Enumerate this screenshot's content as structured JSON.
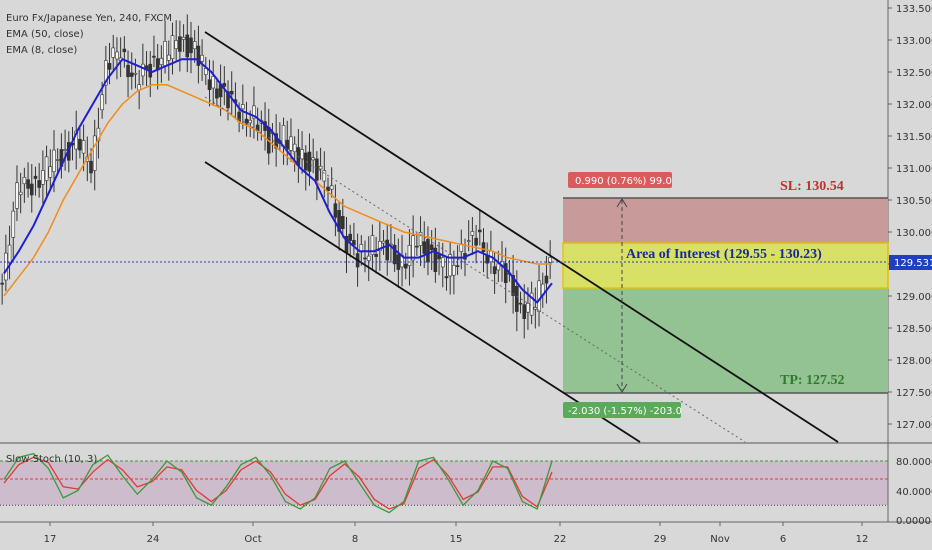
{
  "header": {
    "symbol_line": "Euro Fx/Japanese Yen, 240, FXCM",
    "ema_slow": "EMA (50, close)",
    "ema_fast": "EMA (8, close)"
  },
  "price_axis": {
    "ticks": [
      "133.500",
      "133.000",
      "132.500",
      "132.000",
      "131.500",
      "131.000",
      "130.500",
      "130.000",
      "129.500",
      "129.000",
      "128.500",
      "128.000",
      "127.500",
      "127.000"
    ],
    "current_price": "129.531"
  },
  "time_axis": {
    "ticks": [
      "17",
      "24",
      "Oct",
      "8",
      "15",
      "22",
      "29",
      "Nov",
      "6",
      "12"
    ]
  },
  "trade": {
    "stop_label": "SL: 130.54",
    "stop_stats": "0.990 (0.76%) 99.0",
    "target_label": "TP: 127.52",
    "target_stats": "-2.030 (-1.57%) -203.0",
    "aoi_label": "Area of Interest (129.55 - 130.23)"
  },
  "oscillator": {
    "name": "Slow Stoch (10, 3)",
    "ticks": [
      "80.0000",
      "40.0000",
      "0.0000"
    ]
  },
  "colors": {
    "background": "#d8d8d8",
    "candle": "#333333",
    "ema_fast": "#1f1fd1",
    "ema_slow": "#f28c1c",
    "stop_zone": "#c89a9a",
    "target_zone": "#93c393",
    "aoi_zone": "#f0e45a",
    "stop_text": "#c0302f",
    "target_text": "#2f7a2f",
    "aoi_text": "#1a2a9a",
    "price_tag": "#1f3fbf",
    "stoch_k": "#3a9a3a",
    "stoch_d": "#e03a3a"
  },
  "chart_data": {
    "type": "candlestick",
    "title": "Euro Fx/Japanese Yen, 240, FXCM",
    "ylim": [
      126.8,
      133.6
    ],
    "x_ticks": [
      "17",
      "24",
      "Oct",
      "8",
      "15",
      "22",
      "29",
      "Nov",
      "6",
      "12"
    ],
    "current_price": 129.531,
    "series_close": [
      {
        "day": "Sep 15",
        "close": 129.35
      },
      {
        "day": "Sep 16",
        "close": 130.6
      },
      {
        "day": "Sep 17",
        "close": 130.75
      },
      {
        "day": "Sep 18",
        "close": 131.0
      },
      {
        "day": "Sep 19",
        "close": 131.2
      },
      {
        "day": "Sep 20",
        "close": 131.4
      },
      {
        "day": "Sep 21",
        "close": 131.1
      },
      {
        "day": "Sep 22",
        "close": 132.5
      },
      {
        "day": "Sep 23",
        "close": 132.9
      },
      {
        "day": "Sep 24",
        "close": 132.3
      },
      {
        "day": "Sep 25",
        "close": 132.6
      },
      {
        "day": "Sep 26",
        "close": 132.8
      },
      {
        "day": "Sep 27",
        "close": 133.0
      },
      {
        "day": "Sep 28",
        "close": 132.8
      },
      {
        "day": "Sep 29",
        "close": 132.4
      },
      {
        "day": "Sep 30",
        "close": 132.1
      },
      {
        "day": "Oct 1",
        "close": 131.9
      },
      {
        "day": "Oct 2",
        "close": 131.8
      },
      {
        "day": "Oct 3",
        "close": 131.4
      },
      {
        "day": "Oct 4",
        "close": 131.5
      },
      {
        "day": "Oct 5",
        "close": 131.2
      },
      {
        "day": "Oct 6",
        "close": 131.0
      },
      {
        "day": "Oct 7",
        "close": 130.8
      },
      {
        "day": "Oct 8",
        "close": 129.9
      },
      {
        "day": "Oct 9",
        "close": 129.6
      },
      {
        "day": "Oct 10",
        "close": 129.8
      },
      {
        "day": "Oct 11",
        "close": 129.7
      },
      {
        "day": "Oct 12",
        "close": 129.5
      },
      {
        "day": "Oct 13",
        "close": 129.9
      },
      {
        "day": "Oct 14",
        "close": 129.6
      },
      {
        "day": "Oct 15",
        "close": 129.4
      },
      {
        "day": "Oct 16",
        "close": 129.7
      },
      {
        "day": "Oct 17",
        "close": 129.9
      },
      {
        "day": "Oct 18",
        "close": 129.6
      },
      {
        "day": "Oct 19",
        "close": 129.3
      },
      {
        "day": "Oct 20",
        "close": 128.8
      },
      {
        "day": "Oct 21",
        "close": 128.9
      },
      {
        "day": "Oct 22",
        "close": 129.53
      }
    ],
    "ema_fast": [
      129.35,
      129.7,
      130.1,
      130.6,
      131.1,
      131.6,
      132.0,
      132.4,
      132.7,
      132.6,
      132.5,
      132.6,
      132.7,
      132.7,
      132.5,
      132.2,
      131.9,
      131.8,
      131.6,
      131.3,
      131.0,
      130.8,
      130.3,
      129.9,
      129.7,
      129.7,
      129.8,
      129.6,
      129.6,
      129.7,
      129.6,
      129.6,
      129.7,
      129.6,
      129.4,
      129.1,
      128.9,
      129.2
    ],
    "ema_slow": [
      129.0,
      129.3,
      129.6,
      130.0,
      130.5,
      130.9,
      131.3,
      131.7,
      132.0,
      132.2,
      132.3,
      132.3,
      132.2,
      132.1,
      132.0,
      131.9,
      131.7,
      131.6,
      131.4,
      131.2,
      131.0,
      130.8,
      130.6,
      130.4,
      130.3,
      130.2,
      130.1,
      130.0,
      129.95,
      129.9,
      129.85,
      129.8,
      129.75,
      129.7,
      129.6,
      129.55,
      129.5,
      129.5
    ],
    "trade_setup": {
      "stop_loss": 130.54,
      "take_profit": 127.52,
      "area_of_interest": [
        129.55,
        130.23
      ]
    },
    "channel": {
      "upper_start": 133.1,
      "upper_end": 129.55,
      "lower_start": 131.0,
      "lower_end": 127.4
    },
    "stochastic": {
      "name": "Slow Stoch (10, 3)",
      "levels": [
        80,
        20
      ],
      "k": [
        55,
        85,
        90,
        70,
        30,
        40,
        75,
        88,
        60,
        35,
        55,
        80,
        65,
        30,
        20,
        45,
        75,
        85,
        60,
        25,
        15,
        30,
        70,
        80,
        50,
        20,
        10,
        25,
        80,
        85,
        55,
        20,
        40,
        80,
        70,
        25,
        15,
        80
      ],
      "d": [
        50,
        75,
        85,
        78,
        45,
        42,
        65,
        82,
        68,
        45,
        52,
        72,
        68,
        40,
        25,
        40,
        68,
        80,
        65,
        35,
        20,
        28,
        60,
        76,
        58,
        28,
        15,
        22,
        70,
        82,
        60,
        28,
        38,
        72,
        72,
        32,
        18,
        65
      ]
    }
  }
}
